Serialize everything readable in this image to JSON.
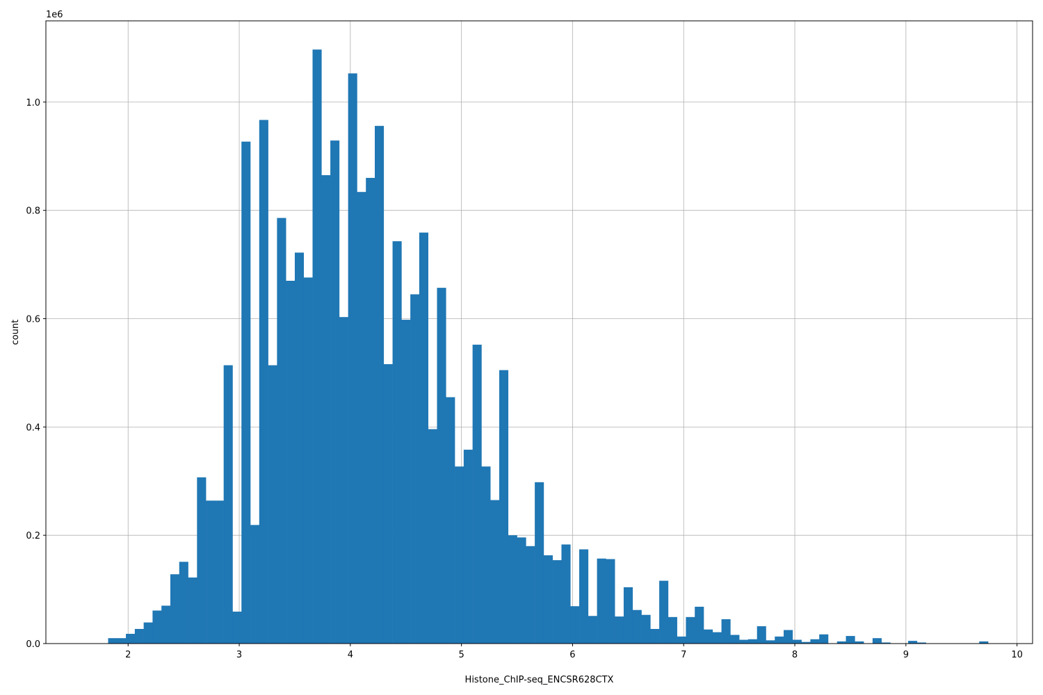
{
  "chart_data": {
    "type": "bar",
    "title": "",
    "xlabel": "Histone_ChIP-seq_ENCSR628CTX",
    "ylabel": "count",
    "y_offset_label": "1e6",
    "xlim": [
      1.26,
      10.14
    ],
    "ylim": [
      0,
      1150000
    ],
    "grid": true,
    "bar_color": "#1f77b4",
    "grid_color": "#b0b0b0",
    "x_ticks": [
      2,
      3,
      4,
      5,
      6,
      7,
      8,
      9,
      10
    ],
    "x_tick_labels": [
      "2",
      "3",
      "4",
      "5",
      "6",
      "7",
      "8",
      "9",
      "10"
    ],
    "y_ticks": [
      0,
      200000,
      400000,
      600000,
      800000,
      1000000
    ],
    "y_tick_labels": [
      "0.0",
      "0.2",
      "0.4",
      "0.6",
      "0.8",
      "1.0"
    ],
    "bin_start": 1.82,
    "bin_width": 0.08,
    "values": [
      10000,
      10000,
      18000,
      27000,
      39000,
      61000,
      70000,
      128000,
      151000,
      122000,
      307000,
      264000,
      264000,
      514000,
      59000,
      927000,
      219000,
      967000,
      514000,
      786000,
      670000,
      722000,
      676000,
      1097000,
      865000,
      929000,
      603000,
      1053000,
      834000,
      860000,
      956000,
      516000,
      743000,
      598000,
      645000,
      759000,
      396000,
      657000,
      455000,
      327000,
      358000,
      552000,
      327000,
      265000,
      505000,
      200000,
      196000,
      180000,
      298000,
      163000,
      154000,
      183000,
      69000,
      174000,
      51000,
      157000,
      156000,
      50000,
      104000,
      62000,
      53000,
      27000,
      116000,
      49000,
      13000,
      49000,
      68000,
      26000,
      21000,
      45000,
      16000,
      7000,
      8000,
      32000,
      6000,
      13000,
      25000,
      7000,
      3000,
      8000,
      17000,
      0,
      4000,
      14000,
      4000,
      0,
      10000,
      2000,
      0,
      0,
      5000,
      2000,
      0,
      0,
      0,
      0,
      0,
      0,
      4000,
      0
    ]
  }
}
